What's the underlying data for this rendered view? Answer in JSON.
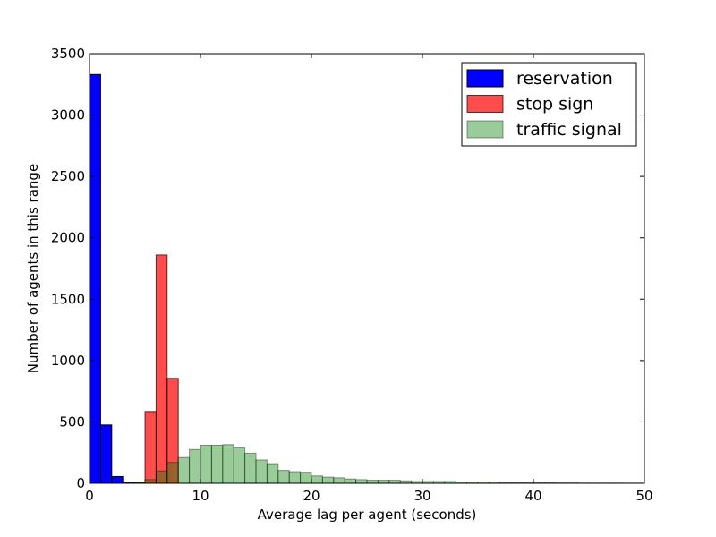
{
  "chart_data": {
    "type": "bar",
    "subtype": "overlaid-histogram",
    "xlabel": "Average lag per agent (seconds)",
    "ylabel": "Number of agents in this range",
    "xlim": [
      0,
      50
    ],
    "ylim": [
      0,
      3500
    ],
    "bin_width": 1,
    "xticks": [
      0,
      10,
      20,
      30,
      40,
      50
    ],
    "yticks": [
      0,
      500,
      1000,
      1500,
      2000,
      2500,
      3000,
      3500
    ],
    "grid": false,
    "legend_position": "top-right",
    "series": [
      {
        "name": "reservation",
        "color": "#0000ff",
        "alpha": 1.0,
        "bins_start": 0,
        "values": [
          3330,
          475,
          55,
          10,
          3,
          1,
          1
        ]
      },
      {
        "name": "stop sign",
        "color": "#ff0000",
        "alpha": 0.7,
        "bins_start": 0,
        "values": [
          0,
          0,
          0,
          0,
          5,
          585,
          1860,
          855,
          0
        ]
      },
      {
        "name": "traffic signal",
        "color": "#008000",
        "alpha": 0.4,
        "bins_start": 0,
        "values": [
          0,
          0,
          0,
          0,
          10,
          30,
          100,
          170,
          210,
          275,
          310,
          310,
          315,
          290,
          245,
          190,
          160,
          105,
          95,
          90,
          60,
          50,
          45,
          35,
          30,
          25,
          25,
          25,
          20,
          15,
          15,
          15,
          15,
          10,
          10,
          10,
          10,
          5,
          5,
          5,
          5,
          5,
          3,
          3,
          2,
          2,
          2,
          2,
          1,
          1
        ]
      }
    ]
  }
}
